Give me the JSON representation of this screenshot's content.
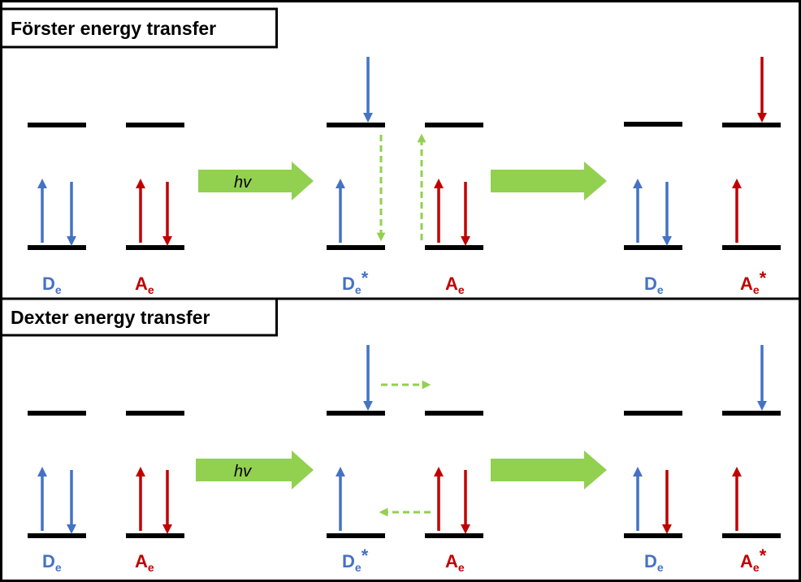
{
  "colors": {
    "donor": "#4472c4",
    "acceptor": "#c00000",
    "transfer": "#92d050",
    "level": "#000000"
  },
  "panels": [
    {
      "id": "forster",
      "title": "Förster energy transfer",
      "photon_label": "hv",
      "stages": [
        {
          "donor": {
            "letter": "D",
            "sub": "e",
            "star": ""
          },
          "acceptor": {
            "letter": "A",
            "sub": "e",
            "star": ""
          }
        },
        {
          "donor": {
            "letter": "D",
            "sub": "e",
            "star": "*"
          },
          "acceptor": {
            "letter": "A",
            "sub": "e",
            "star": ""
          }
        },
        {
          "donor": {
            "letter": "D",
            "sub": "e",
            "star": ""
          },
          "acceptor": {
            "letter": "A",
            "sub": "e",
            "star": "*"
          }
        }
      ]
    },
    {
      "id": "dexter",
      "title": "Dexter energy transfer",
      "photon_label": "hv",
      "stages": [
        {
          "donor": {
            "letter": "D",
            "sub": "e",
            "star": ""
          },
          "acceptor": {
            "letter": "A",
            "sub": "e",
            "star": ""
          }
        },
        {
          "donor": {
            "letter": "D",
            "sub": "e",
            "star": "*"
          },
          "acceptor": {
            "letter": "A",
            "sub": "e",
            "star": ""
          }
        },
        {
          "donor": {
            "letter": "D",
            "sub": "e",
            "star": ""
          },
          "acceptor": {
            "letter": "A",
            "sub": "e",
            "star": "*"
          }
        }
      ]
    }
  ]
}
